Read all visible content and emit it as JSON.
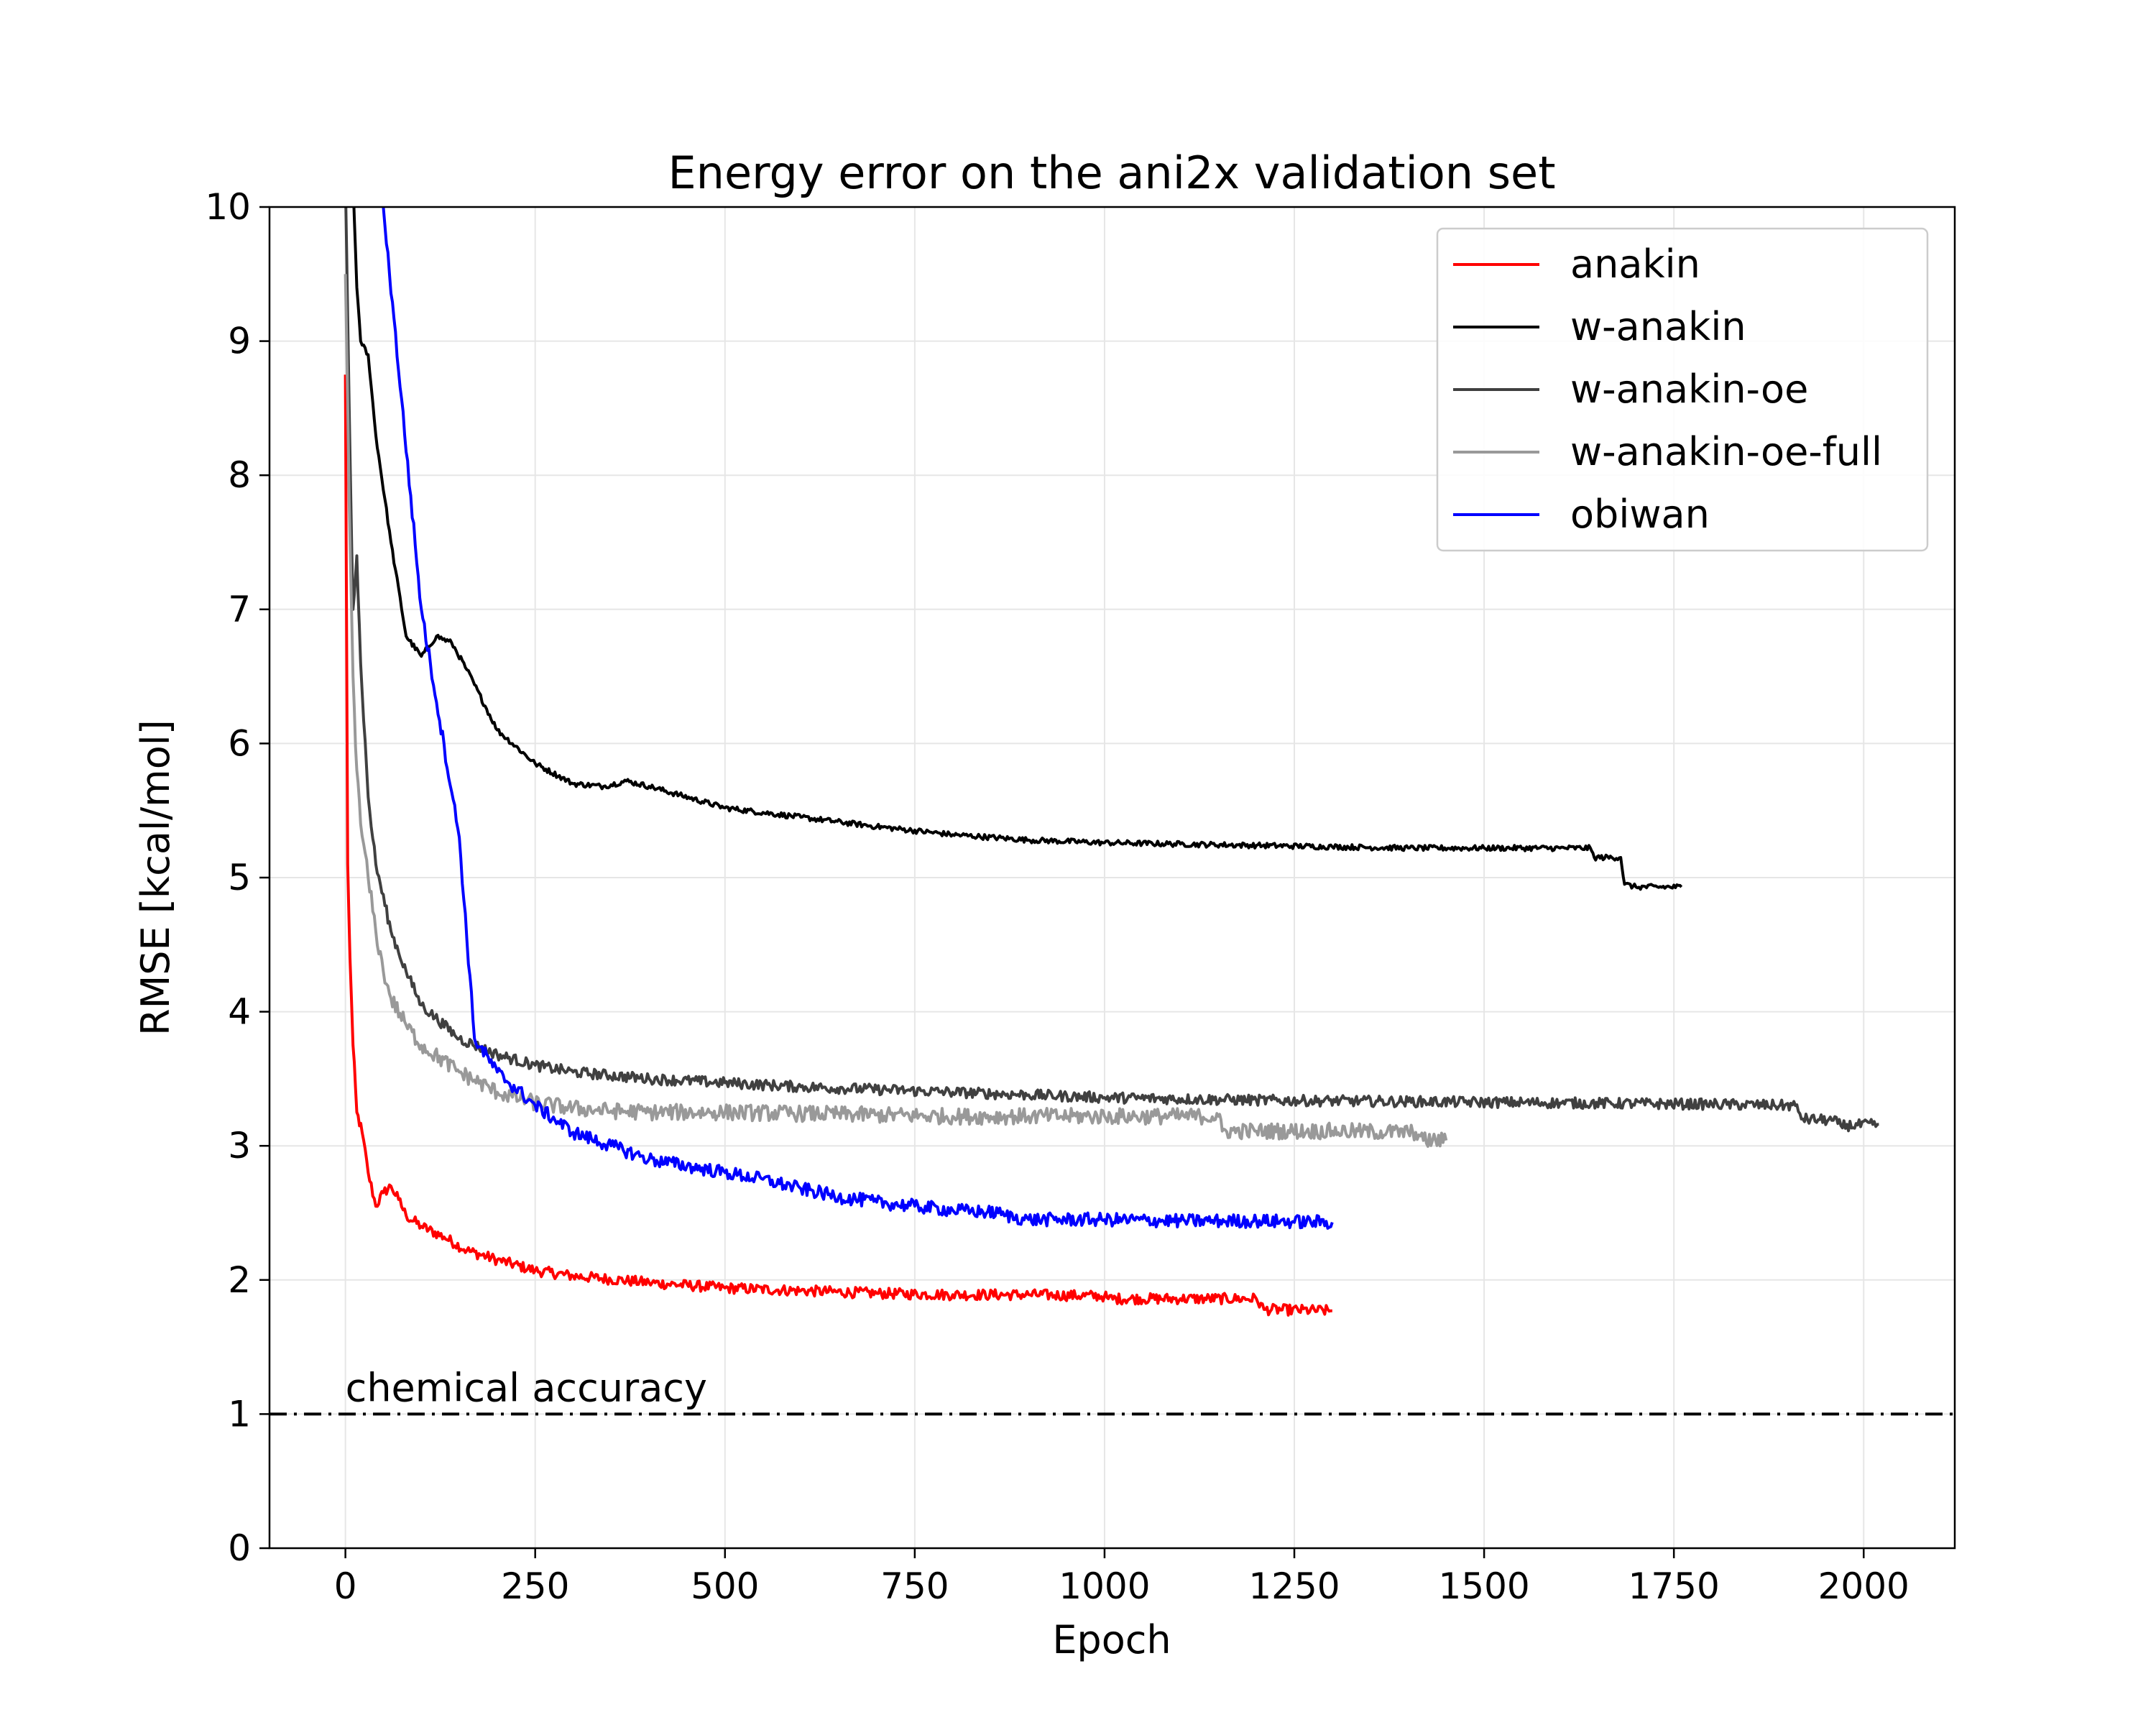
{
  "chart_data": {
    "type": "line",
    "title": "Energy error on the ani2x validation set",
    "xlabel": "Epoch",
    "ylabel": "RMSE [kcal/mol]",
    "xlim": [
      -100,
      2120
    ],
    "ylim": [
      0,
      10
    ],
    "xticks": [
      0,
      250,
      500,
      750,
      1000,
      1250,
      1500,
      1750,
      2000
    ],
    "yticks": [
      0,
      1,
      2,
      3,
      4,
      5,
      6,
      7,
      8,
      9,
      10
    ],
    "grid": true,
    "legend_position": "top-right",
    "reference_line": {
      "y": 1,
      "label": "chemical accuracy",
      "style": "dash-dot",
      "color": "#000000"
    },
    "series": [
      {
        "name": "anakin",
        "color": "#ff0000",
        "x": [
          0,
          3,
          6,
          10,
          15,
          22,
          30,
          40,
          50,
          60,
          70,
          80,
          100,
          130,
          160,
          200,
          250,
          300,
          400,
          500,
          600,
          700,
          800,
          900,
          1000,
          1005,
          1100,
          1200,
          1210,
          1300
        ],
        "y": [
          8.75,
          5.1,
          4.4,
          3.75,
          3.25,
          3.1,
          2.8,
          2.55,
          2.65,
          2.7,
          2.6,
          2.48,
          2.4,
          2.32,
          2.22,
          2.15,
          2.07,
          2.03,
          1.98,
          1.94,
          1.92,
          1.9,
          1.89,
          1.89,
          1.88,
          1.86,
          1.86,
          1.86,
          1.78,
          1.77
        ],
        "noise": 0.04
      },
      {
        "name": "w-anakin",
        "color": "#000000",
        "x": [
          10,
          15,
          20,
          30,
          40,
          60,
          80,
          100,
          120,
          140,
          160,
          200,
          250,
          300,
          340,
          370,
          400,
          500,
          600,
          700,
          800,
          900,
          1000,
          1100,
          1200,
          1300,
          1400,
          1500,
          1600,
          1640,
          1645,
          1680,
          1685,
          1700,
          1760
        ],
        "y": [
          10.2,
          9.4,
          9.0,
          8.9,
          8.3,
          7.5,
          6.8,
          6.65,
          6.8,
          6.75,
          6.55,
          6.1,
          5.85,
          5.7,
          5.68,
          5.72,
          5.68,
          5.52,
          5.45,
          5.38,
          5.32,
          5.28,
          5.26,
          5.25,
          5.24,
          5.23,
          5.22,
          5.22,
          5.22,
          5.22,
          5.15,
          5.15,
          4.95,
          4.93,
          4.93
        ],
        "noise": 0.02
      },
      {
        "name": "w-anakin-oe",
        "color": "#404040",
        "x": [
          0,
          5,
          10,
          15,
          20,
          30,
          40,
          60,
          80,
          100,
          150,
          200,
          250,
          300,
          400,
          500,
          600,
          700,
          800,
          900,
          1000,
          1200,
          1400,
          1600,
          1800,
          1910,
          1920,
          1960,
          1970,
          2020
        ],
        "y": [
          10.2,
          8.5,
          7.0,
          7.4,
          6.6,
          5.6,
          5.1,
          4.6,
          4.3,
          4.05,
          3.8,
          3.68,
          3.6,
          3.55,
          3.5,
          3.47,
          3.44,
          3.42,
          3.4,
          3.38,
          3.36,
          3.34,
          3.33,
          3.32,
          3.31,
          3.3,
          3.2,
          3.19,
          3.15,
          3.16
        ],
        "noise": 0.04
      },
      {
        "name": "w-anakin-oe-full",
        "color": "#999999",
        "x": [
          0,
          5,
          10,
          15,
          20,
          30,
          40,
          50,
          60,
          80,
          100,
          150,
          200,
          250,
          300,
          350,
          400,
          500,
          600,
          700,
          800,
          900,
          1000,
          1100,
          1150,
          1155,
          1200,
          1300,
          1400,
          1410,
          1420,
          1450
        ],
        "y": [
          9.5,
          7.8,
          6.5,
          5.8,
          5.4,
          5.0,
          4.6,
          4.3,
          4.1,
          3.9,
          3.75,
          3.55,
          3.4,
          3.32,
          3.28,
          3.26,
          3.25,
          3.25,
          3.24,
          3.23,
          3.22,
          3.22,
          3.22,
          3.22,
          3.22,
          3.11,
          3.11,
          3.11,
          3.1,
          3.1,
          3.04,
          3.04
        ],
        "noise": 0.06
      },
      {
        "name": "obiwan",
        "color": "#0000ff",
        "x": [
          50,
          100,
          150,
          170,
          200,
          250,
          300,
          350,
          400,
          450,
          500,
          550,
          600,
          650,
          700,
          750,
          800,
          860,
          870,
          900,
          1000,
          1100,
          1200,
          1300
        ],
        "y": [
          10.0,
          7.0,
          5.3,
          3.8,
          3.55,
          3.3,
          3.1,
          3.0,
          2.9,
          2.85,
          2.8,
          2.75,
          2.68,
          2.62,
          2.58,
          2.55,
          2.52,
          2.5,
          2.48,
          2.45,
          2.45,
          2.44,
          2.44,
          2.43
        ],
        "noise": 0.05
      }
    ]
  }
}
